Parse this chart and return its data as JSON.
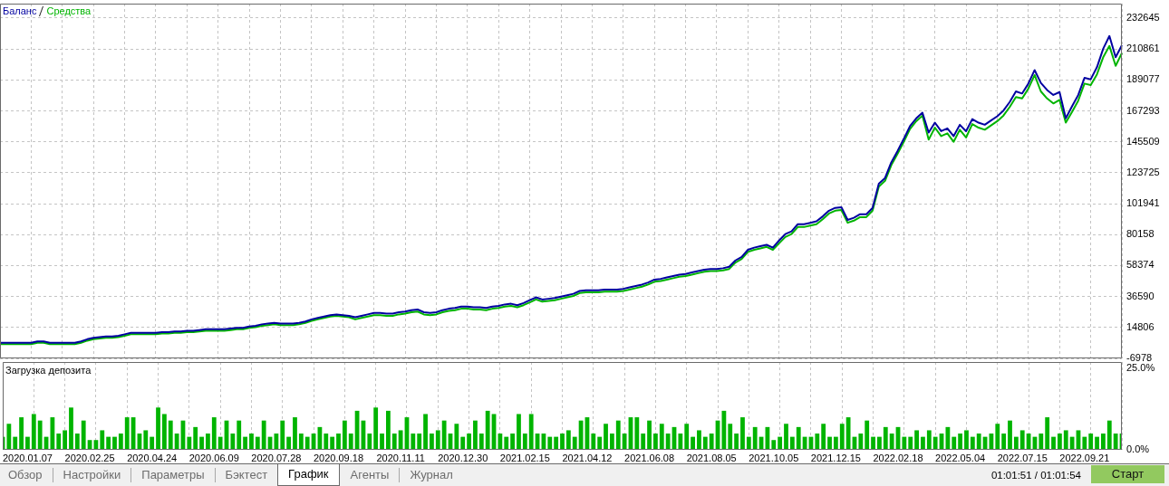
{
  "chart_data": [
    {
      "type": "line",
      "categories": [
        null,
        null,
        null,
        null,
        "2020.01.07",
        null,
        null,
        null,
        null,
        null,
        null,
        null,
        null,
        null,
        "2020.02.25",
        null,
        null,
        null,
        null,
        null,
        null,
        null,
        null,
        null,
        "2020.04.24",
        null,
        null,
        null,
        null,
        null,
        null,
        null,
        null,
        null,
        "2020.06.09",
        null,
        null,
        null,
        null,
        null,
        null,
        null,
        null,
        null,
        "2020.07.28",
        null,
        null,
        null,
        null,
        null,
        null,
        null,
        null,
        null,
        "2020.09.18",
        null,
        null,
        null,
        null,
        null,
        null,
        null,
        null,
        null,
        "2020.11.11",
        null,
        null,
        null,
        null,
        null,
        null,
        null,
        null,
        null,
        "2020.12.30",
        null,
        null,
        null,
        null,
        null,
        null,
        null,
        null,
        null,
        "2021.02.15",
        null,
        null,
        null,
        null,
        null,
        null,
        null,
        null,
        null,
        "2021.04.12",
        null,
        null,
        null,
        null,
        null,
        null,
        null,
        null,
        null,
        "2021.06.08",
        null,
        null,
        null,
        null,
        null,
        null,
        null,
        null,
        null,
        "2021.08.05",
        null,
        null,
        null,
        null,
        null,
        null,
        null,
        null,
        null,
        "2021.10.05",
        null,
        null,
        null,
        null,
        null,
        null,
        null,
        null,
        null,
        "2021.12.15",
        null,
        null,
        null,
        null,
        null,
        null,
        null,
        null,
        null,
        "2022.02.18",
        null,
        null,
        null,
        null,
        null,
        null,
        null,
        null,
        null,
        "2022.05.04",
        null,
        null,
        null,
        null,
        null,
        null,
        null,
        null,
        null,
        "2022.07.15",
        null,
        null,
        null,
        null,
        null,
        null,
        null,
        null,
        null,
        "2022.09.21",
        null,
        null,
        null,
        null,
        null,
        null
      ],
      "series": [
        {
          "name": "Баланс",
          "color": "#0000a0",
          "values": [
            4000,
            4000,
            4000,
            4000,
            4000,
            4000,
            5000,
            5000,
            4000,
            4000,
            4000,
            4000,
            4000,
            5000,
            6500,
            7500,
            8000,
            8500,
            8500,
            9000,
            10000,
            11000,
            11000,
            11000,
            11000,
            11000,
            11500,
            11500,
            12000,
            12000,
            12500,
            12500,
            13000,
            13500,
            13500,
            13500,
            13500,
            14000,
            14500,
            14500,
            15500,
            16000,
            17000,
            17500,
            18000,
            17500,
            17500,
            17500,
            18000,
            19000,
            20500,
            21500,
            22500,
            23500,
            24000,
            23500,
            23000,
            22000,
            23000,
            24000,
            25000,
            25000,
            24500,
            24500,
            25500,
            26000,
            27000,
            27500,
            25500,
            25000,
            25500,
            27000,
            28000,
            28500,
            29500,
            29500,
            29000,
            29000,
            28500,
            29500,
            30000,
            31000,
            31500,
            30500,
            32000,
            34000,
            36000,
            34500,
            35000,
            35500,
            36500,
            37500,
            38500,
            40500,
            41000,
            41000,
            41000,
            41500,
            41500,
            41500,
            42000,
            43000,
            44000,
            45000,
            46500,
            48500,
            49000,
            50000,
            51000,
            52000,
            52500,
            53500,
            54500,
            55500,
            56000,
            56000,
            56500,
            57500,
            62000,
            64500,
            69500,
            71000,
            72000,
            73000,
            71000,
            76000,
            80500,
            82500,
            87500,
            87500,
            88500,
            89500,
            93000,
            97000,
            99000,
            99500,
            90500,
            92000,
            94500,
            94500,
            99000,
            116000,
            120000,
            131000,
            139000,
            147500,
            156500,
            162000,
            166000,
            152000,
            159000,
            153000,
            155000,
            149500,
            157500,
            153000,
            161500,
            159000,
            157500,
            160500,
            163500,
            167500,
            173500,
            181000,
            179500,
            186500,
            196000,
            187000,
            182000,
            178500,
            180500,
            162000,
            170500,
            178500,
            190500,
            189500,
            198000,
            211000,
            220000,
            205000,
            213500
          ]
        },
        {
          "name": "Средства",
          "color": "#00b400",
          "values": [
            3000,
            3000,
            3000,
            3000,
            3000,
            3000,
            4000,
            4000,
            3000,
            3000,
            3000,
            3000,
            3000,
            4000,
            5500,
            6500,
            7000,
            7500,
            7500,
            8000,
            9000,
            10000,
            10000,
            10000,
            10000,
            10000,
            10500,
            10500,
            11000,
            11000,
            11500,
            11500,
            12000,
            12500,
            12500,
            12500,
            12500,
            13000,
            13500,
            13500,
            14500,
            15000,
            16000,
            16500,
            17000,
            16500,
            16500,
            16500,
            17000,
            18000,
            19500,
            20500,
            21500,
            22500,
            23000,
            22500,
            22000,
            20500,
            21500,
            22500,
            23500,
            23500,
            23000,
            23000,
            24000,
            24500,
            25500,
            26000,
            24000,
            23500,
            24000,
            25500,
            26500,
            27000,
            28000,
            28000,
            27500,
            27500,
            27000,
            28000,
            28500,
            29500,
            30000,
            29000,
            30500,
            32500,
            34500,
            33000,
            33500,
            34000,
            35000,
            36000,
            37000,
            39000,
            39500,
            39500,
            39500,
            40000,
            40000,
            40000,
            40500,
            41500,
            42500,
            43500,
            45000,
            47000,
            47500,
            48500,
            49500,
            50500,
            51000,
            52000,
            53000,
            54000,
            54500,
            54500,
            55000,
            56000,
            60500,
            63000,
            68000,
            69500,
            70500,
            71500,
            69500,
            74000,
            78500,
            80500,
            85500,
            85500,
            86500,
            87500,
            91000,
            95000,
            97000,
            97500,
            88500,
            90000,
            92500,
            92500,
            97000,
            114000,
            118000,
            129000,
            137000,
            145500,
            154500,
            160000,
            164000,
            147000,
            155500,
            149500,
            151500,
            145500,
            154000,
            148500,
            158000,
            155500,
            154000,
            157000,
            160000,
            164000,
            170000,
            177000,
            176000,
            183000,
            192500,
            181000,
            176000,
            172500,
            175000,
            159000,
            166500,
            174500,
            186500,
            185500,
            193000,
            205000,
            213000,
            199000,
            208000
          ]
        }
      ],
      "ylim": [
        -6978,
        242800
      ],
      "yticks": [
        -6978,
        14806,
        36590,
        58374,
        80158,
        101941,
        123725,
        145509,
        167293,
        189077,
        210861,
        232645
      ],
      "grid": true,
      "legend": "top left",
      "tick_labels": "y"
    },
    {
      "type": "bar",
      "title": "Загрузка депозита",
      "categories": [
        null,
        null,
        null,
        null,
        "2020.01.07",
        null,
        null,
        null,
        null,
        null,
        null,
        null,
        null,
        null,
        "2020.02.25",
        null,
        null,
        null,
        null,
        null,
        null,
        null,
        null,
        null,
        "2020.04.24",
        null,
        null,
        null,
        null,
        null,
        null,
        null,
        null,
        null,
        "2020.06.09",
        null,
        null,
        null,
        null,
        null,
        null,
        null,
        null,
        null,
        "2020.07.28",
        null,
        null,
        null,
        null,
        null,
        null,
        null,
        null,
        null,
        "2020.09.18",
        null,
        null,
        null,
        null,
        null,
        null,
        null,
        null,
        null,
        "2020.11.11",
        null,
        null,
        null,
        null,
        null,
        null,
        null,
        null,
        null,
        "2020.12.30",
        null,
        null,
        null,
        null,
        null,
        null,
        null,
        null,
        null,
        "2021.02.15",
        null,
        null,
        null,
        null,
        null,
        null,
        null,
        null,
        null,
        "2021.04.12",
        null,
        null,
        null,
        null,
        null,
        null,
        null,
        null,
        null,
        "2021.06.08",
        null,
        null,
        null,
        null,
        null,
        null,
        null,
        null,
        null,
        "2021.08.05",
        null,
        null,
        null,
        null,
        null,
        null,
        null,
        null,
        null,
        "2021.10.05",
        null,
        null,
        null,
        null,
        null,
        null,
        null,
        null,
        null,
        "2021.12.15",
        null,
        null,
        null,
        null,
        null,
        null,
        null,
        null,
        null,
        "2022.02.18",
        null,
        null,
        null,
        null,
        null,
        null,
        null,
        null,
        null,
        "2022.05.04",
        null,
        null,
        null,
        null,
        null,
        null,
        null,
        null,
        null,
        "2022.07.15",
        null,
        null,
        null,
        null,
        null,
        null,
        null,
        null,
        null,
        "2022.09.21",
        null,
        null,
        null,
        null,
        null,
        null
      ],
      "values": [
        4,
        8,
        4,
        10,
        4,
        11,
        9,
        4,
        10,
        5,
        6,
        13,
        5,
        9,
        3,
        3,
        6,
        4,
        4,
        5,
        10,
        10,
        5,
        6,
        4,
        13,
        11,
        9,
        5,
        9,
        4,
        7,
        4,
        5,
        10,
        4,
        9,
        5,
        9,
        4,
        5,
        4,
        9,
        4,
        5,
        9,
        4,
        10,
        5,
        4,
        5,
        7,
        5,
        4,
        5,
        9,
        5,
        12,
        9,
        5,
        13,
        5,
        12,
        5,
        6,
        10,
        5,
        5,
        11,
        5,
        6,
        9,
        5,
        8,
        4,
        5,
        9,
        5,
        12,
        11,
        5,
        4,
        5,
        11,
        5,
        11,
        5,
        5,
        4,
        4,
        5,
        6,
        4,
        9,
        10,
        5,
        4,
        8,
        5,
        9,
        5,
        10,
        10,
        5,
        9,
        5,
        8,
        5,
        7,
        5,
        8,
        4,
        6,
        4,
        5,
        9,
        12,
        8,
        5,
        10,
        4,
        7,
        4,
        7,
        3,
        4,
        8,
        4,
        7,
        4,
        4,
        5,
        8,
        4,
        4,
        8,
        10,
        4,
        5,
        9,
        4,
        4,
        7,
        5,
        7,
        4,
        4,
        6,
        4,
        6,
        4,
        5,
        7,
        4,
        5,
        6,
        4,
        5,
        4,
        5,
        8,
        5,
        9,
        4,
        6,
        5,
        4,
        5,
        10,
        4,
        5,
        6,
        4,
        6,
        4,
        5,
        4,
        5,
        9,
        5,
        5
      ],
      "color": "#00b400",
      "ylim": [
        0,
        27
      ],
      "yticks": [
        {
          "value": 0,
          "label": "0.0%"
        },
        {
          "value": 25,
          "label": "25.0%"
        }
      ],
      "grid": "x"
    },
    {
      "type": "other",
      "categories": [
        "Обзор",
        "Настройки",
        "Параметры",
        "Бэктест",
        "График",
        "Агенты",
        "Журнал"
      ],
      "annotations": [
        "01:01:51 / 01:01:54",
        "Старт"
      ]
    }
  ]
}
